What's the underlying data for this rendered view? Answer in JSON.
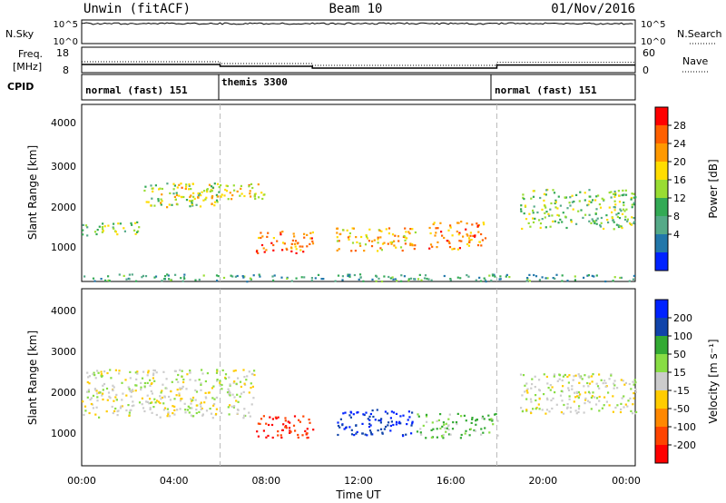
{
  "header": {
    "station": "Unwin (fitACF)",
    "beam": "Beam 10",
    "date": "01/Nov/2016"
  },
  "panels": {
    "nsky": {
      "label": "N.Sky",
      "left_ticks": [
        "10^5",
        "10^0"
      ],
      "right_ticks": [
        "10^5",
        "10^0"
      ],
      "right_label": "N.Search"
    },
    "freq": {
      "label_line1": "Freq.",
      "label_line2": "[MHz]",
      "left_ticks": [
        "18",
        "8"
      ],
      "right_ticks": [
        "60",
        "0"
      ],
      "right_label": "Nave"
    },
    "cpid": {
      "label": "CPID",
      "segments": [
        {
          "name": "normal (fast) 151",
          "start_hour": 0,
          "end_hour": 6
        },
        {
          "name": "themis 3300",
          "start_hour": 6,
          "end_hour": 18
        },
        {
          "name": "normal (fast) 151",
          "start_hour": 18,
          "end_hour": 24
        }
      ]
    }
  },
  "axes": {
    "slant_range_label": "Slant Range [km]",
    "range_ticks": [
      "4000",
      "3000",
      "2000",
      "1000"
    ],
    "time_label": "Time UT",
    "time_ticks": [
      "00:00",
      "04:00",
      "08:00",
      "12:00",
      "16:00",
      "20:00",
      "00:00"
    ]
  },
  "colorbars": {
    "power": {
      "label": "Power [dB]",
      "ticks": [
        "28",
        "24",
        "20",
        "16",
        "12",
        "8",
        "4"
      ],
      "colors": [
        "#ff0000",
        "#ff6000",
        "#ff9900",
        "#ffdd00",
        "#99dd33",
        "#33aa55",
        "#55aa88",
        "#2277aa",
        "#0022ff"
      ]
    },
    "velocity": {
      "label": "Velocity [m s⁻¹]",
      "ticks": [
        "200",
        "100",
        "50",
        "15",
        "-15",
        "-50",
        "-100",
        "-200"
      ],
      "colors": [
        "#0022ff",
        "#1144aa",
        "#33aa33",
        "#88dd44",
        "#cccccc",
        "#ffcc00",
        "#ff8800",
        "#ff4400",
        "#ff0000"
      ]
    }
  },
  "chart_data": {
    "type": "heatmap",
    "title": "Unwin (fitACF) Beam 10 01/Nov/2016",
    "xlabel": "Time UT",
    "ylabel": "Slant Range [km]",
    "xlim": [
      0,
      24
    ],
    "ylim": [
      180,
      4600
    ],
    "freq_mhz_by_mode": [
      {
        "start_hour": 0,
        "end_hour": 6,
        "freq": 11.2
      },
      {
        "start_hour": 6,
        "end_hour": 10,
        "freq": 10.5
      },
      {
        "start_hour": 10,
        "end_hour": 18,
        "freq": 9.8
      },
      {
        "start_hour": 18,
        "end_hour": 24,
        "freq": 11.0
      }
    ],
    "mode_boundaries_hours": [
      6,
      18
    ],
    "power_regions": [
      {
        "t0": 0,
        "t1": 2.6,
        "r0": 1350,
        "r1": 1700,
        "power": 12
      },
      {
        "t0": 2.6,
        "t1": 6,
        "r0": 2050,
        "r1": 2650,
        "power": 14
      },
      {
        "t0": 4,
        "t1": 8,
        "r0": 2250,
        "r1": 2650,
        "power": 18
      },
      {
        "t0": 7.5,
        "t1": 10,
        "r0": 900,
        "r1": 1450,
        "power": 24
      },
      {
        "t0": 11,
        "t1": 14.5,
        "r0": 950,
        "r1": 1550,
        "power": 20
      },
      {
        "t0": 15,
        "t1": 17.5,
        "r0": 1000,
        "r1": 1700,
        "power": 22
      },
      {
        "t0": 19,
        "t1": 24,
        "r0": 1500,
        "r1": 2500,
        "power": 12
      },
      {
        "t0": 0,
        "t1": 24,
        "r0": 200,
        "r1": 380,
        "power": 8
      }
    ],
    "velocity_regions": [
      {
        "t0": 0,
        "t1": 7.5,
        "r0": 1400,
        "r1": 2600,
        "velocity": 0
      },
      {
        "t0": 7.5,
        "t1": 10,
        "r0": 900,
        "r1": 1450,
        "velocity": -150
      },
      {
        "t0": 11,
        "t1": 14.5,
        "r0": 950,
        "r1": 1600,
        "velocity": 150
      },
      {
        "t0": 14.5,
        "t1": 18,
        "r0": 900,
        "r1": 1500,
        "velocity": 30
      },
      {
        "t0": 19,
        "t1": 24,
        "r0": 1500,
        "r1": 2500,
        "velocity": 0
      }
    ]
  }
}
